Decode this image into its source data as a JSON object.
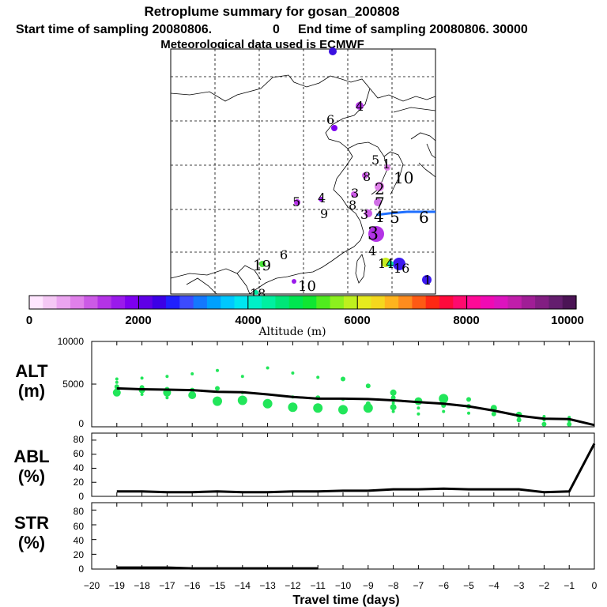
{
  "header": {
    "title": "Retroplume summary for gosan_200808",
    "start_label": "Start time of sampling 20080806.",
    "start_value": "0",
    "end_label": "End time of sampling 20080806. 30000",
    "met_line": "Meteorological data used is ECMWF"
  },
  "map": {
    "point_labels": [
      {
        "text": "4"
      },
      {
        "text": "6"
      },
      {
        "text": "1"
      },
      {
        "text": "10"
      },
      {
        "text": "8"
      },
      {
        "text": "2"
      },
      {
        "text": "7"
      },
      {
        "text": "5"
      },
      {
        "text": "4"
      },
      {
        "text": "9"
      },
      {
        "text": "3"
      },
      {
        "text": "8"
      },
      {
        "text": "5"
      },
      {
        "text": "3"
      },
      {
        "text": "4"
      },
      {
        "text": "5"
      },
      {
        "text": "6"
      },
      {
        "text": "3"
      },
      {
        "text": "4"
      },
      {
        "text": "19"
      },
      {
        "text": "6"
      },
      {
        "text": "10"
      },
      {
        "text": "18"
      },
      {
        "text": "14"
      },
      {
        "text": "16"
      },
      {
        "text": "1"
      }
    ]
  },
  "colorbar": {
    "ticks": [
      "0",
      "2000",
      "4000",
      "6000",
      "8000",
      "10000"
    ],
    "label": "Altitude (m)",
    "colors": [
      "#ffe6ff",
      "#f5c8f5",
      "#eba5f0",
      "#e080ea",
      "#cc5ae6",
      "#b433e6",
      "#9a1aeb",
      "#7d00f0",
      "#5f00e6",
      "#3c00e6",
      "#2020ff",
      "#3c4bff",
      "#1478ff",
      "#00a0ff",
      "#00c8ff",
      "#00e6f0",
      "#00f0c8",
      "#00f0a0",
      "#00e678",
      "#00e650",
      "#10e632",
      "#50eb1e",
      "#8cf01e",
      "#bef01e",
      "#e6eb1e",
      "#f5d71e",
      "#ffb41e",
      "#ff8c1e",
      "#ff5a14",
      "#ff2814",
      "#ff0a3c",
      "#ff0a6e",
      "#ff0a96",
      "#f00ab4",
      "#dc14be",
      "#c01eaa",
      "#a01e96",
      "#821e82",
      "#641e6e",
      "#4b1455"
    ]
  },
  "axes": {
    "alt_label": "ALT",
    "alt_unit": "(m)",
    "abl_label": "ABL",
    "abl_unit": "(%)",
    "str_label": "STR",
    "str_unit": "(%)",
    "alt_ticks": [
      "10000",
      "5000",
      "0"
    ],
    "pct_ticks": [
      "80",
      "60",
      "40",
      "20",
      "0"
    ],
    "x_ticks": [
      "−20",
      "−19",
      "−18",
      "−17",
      "−16",
      "−15",
      "−14",
      "−13",
      "−12",
      "−11",
      "−10",
      "−9",
      "−8",
      "−7",
      "−6",
      "−5",
      "−4",
      "−3",
      "−2",
      "−1",
      "0"
    ],
    "x_label": "Travel time (days)"
  },
  "chart_data": {
    "type": "line",
    "title": "Retroplume summary for gosan_200808",
    "xlabel": "Travel time (days)",
    "x": [
      -19,
      -18,
      -17,
      -16,
      -15,
      -14,
      -13,
      -12,
      -11,
      -10,
      -9,
      -8,
      -7,
      -6,
      -5,
      -4,
      -3,
      -2,
      -1,
      0
    ],
    "series": [
      {
        "name": "ALT mean (m)",
        "ylim": [
          0,
          10000
        ],
        "values": [
          4500,
          4400,
          4350,
          4300,
          4100,
          4050,
          3800,
          3500,
          3300,
          3300,
          3250,
          3100,
          2900,
          2700,
          2400,
          1900,
          1300,
          950,
          900,
          200
        ]
      },
      {
        "name": "ABL (%)",
        "ylim": [
          0,
          90
        ],
        "values": [
          7,
          7,
          6,
          6,
          7,
          6,
          6,
          7,
          7,
          8,
          8,
          10,
          10,
          11,
          10,
          10,
          10,
          6,
          7,
          75
        ]
      },
      {
        "name": "STR (%)",
        "ylim": [
          0,
          90
        ],
        "values": [
          2,
          2,
          2,
          1,
          1,
          1,
          1,
          1,
          1,
          0,
          0,
          0,
          0,
          0,
          0,
          0,
          0,
          0,
          0,
          0
        ]
      }
    ],
    "alt_clusters": [
      {
        "x": -19,
        "points": [
          [
            5600,
            2
          ],
          [
            5200,
            2
          ],
          [
            4700,
            3
          ],
          [
            4300,
            3
          ],
          [
            4000,
            5
          ]
        ]
      },
      {
        "x": -18,
        "points": [
          [
            5700,
            2
          ],
          [
            4600,
            3
          ],
          [
            4300,
            4
          ],
          [
            3800,
            2
          ]
        ]
      },
      {
        "x": -17,
        "points": [
          [
            5900,
            2
          ],
          [
            4400,
            3
          ],
          [
            4000,
            5
          ],
          [
            3400,
            2
          ]
        ]
      },
      {
        "x": -16,
        "points": [
          [
            6200,
            2
          ],
          [
            4300,
            3
          ],
          [
            3700,
            5
          ]
        ]
      },
      {
        "x": -15,
        "points": [
          [
            6600,
            2
          ],
          [
            4500,
            3
          ],
          [
            3000,
            6
          ]
        ]
      },
      {
        "x": -14,
        "points": [
          [
            5900,
            2
          ],
          [
            4000,
            2
          ],
          [
            3100,
            6
          ]
        ]
      },
      {
        "x": -13,
        "points": [
          [
            6900,
            2
          ],
          [
            2700,
            6
          ]
        ]
      },
      {
        "x": -12,
        "points": [
          [
            6300,
            2
          ],
          [
            3500,
            2
          ],
          [
            2300,
            6
          ]
        ]
      },
      {
        "x": -11,
        "points": [
          [
            5800,
            2
          ],
          [
            3400,
            3
          ],
          [
            2200,
            6
          ]
        ]
      },
      {
        "x": -10,
        "points": [
          [
            5600,
            3
          ],
          [
            3200,
            2
          ],
          [
            2000,
            6
          ]
        ]
      },
      {
        "x": -9,
        "points": [
          [
            4800,
            3
          ],
          [
            2700,
            3
          ],
          [
            2200,
            6
          ]
        ]
      },
      {
        "x": -8,
        "points": [
          [
            4000,
            4
          ],
          [
            3400,
            3
          ],
          [
            2800,
            2
          ],
          [
            2300,
            4
          ],
          [
            1800,
            2
          ]
        ]
      },
      {
        "x": -7,
        "points": [
          [
            3000,
            5
          ],
          [
            2200,
            2
          ],
          [
            1500,
            2
          ]
        ]
      },
      {
        "x": -6,
        "points": [
          [
            3300,
            6
          ],
          [
            2500,
            3
          ],
          [
            1800,
            2
          ]
        ]
      },
      {
        "x": -5,
        "points": [
          [
            3200,
            3
          ],
          [
            2400,
            3
          ],
          [
            1600,
            2
          ]
        ]
      },
      {
        "x": -4,
        "points": [
          [
            2200,
            4
          ],
          [
            1500,
            3
          ]
        ]
      },
      {
        "x": -3,
        "points": [
          [
            1400,
            4
          ],
          [
            800,
            3
          ]
        ]
      },
      {
        "x": -2,
        "points": [
          [
            1200,
            2
          ],
          [
            800,
            2
          ],
          [
            300,
            3
          ]
        ]
      },
      {
        "x": -1,
        "points": [
          [
            1100,
            2
          ],
          [
            700,
            2
          ],
          [
            300,
            3
          ]
        ]
      },
      {
        "x": 0,
        "points": []
      }
    ],
    "colorbar_range": [
      0,
      10000
    ],
    "colorbar_label": "Altitude (m)"
  }
}
